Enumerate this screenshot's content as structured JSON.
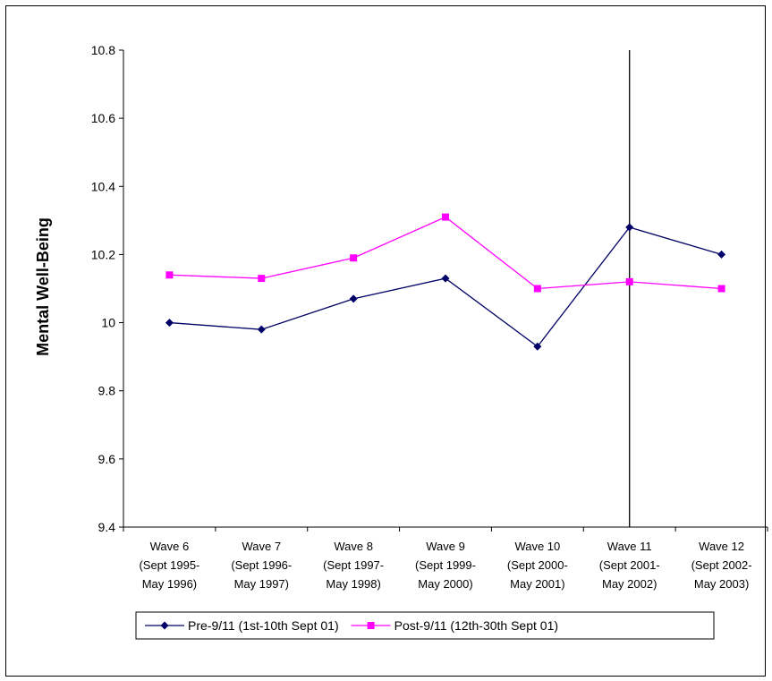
{
  "chart_data": {
    "type": "line",
    "title": "",
    "xlabel": "",
    "ylabel": "Mental Well-Being",
    "ylim": [
      9.4,
      10.8
    ],
    "y_ticks": [
      "9.4",
      "9.6",
      "9.8",
      "10",
      "10.2",
      "10.4",
      "10.6",
      "10.8"
    ],
    "categories": [
      [
        "Wave 6",
        "(Sept 1995-",
        "May 1996)"
      ],
      [
        "Wave 7",
        "(Sept 1996-",
        "May 1997)"
      ],
      [
        "Wave 8",
        "(Sept 1997-",
        "May 1998)"
      ],
      [
        "Wave 9",
        "(Sept 1999-",
        "May 2000)"
      ],
      [
        "Wave 10",
        "(Sept 2000-",
        "May 2001)"
      ],
      [
        "Wave 11",
        "(Sept 2001-",
        "May 2002)"
      ],
      [
        "Wave 12",
        "(Sept 2002-",
        "May 2003)"
      ]
    ],
    "series": [
      {
        "name": "Pre-9/11 (1st-10th Sept 01)",
        "color": "#000066",
        "marker": "diamond",
        "values": [
          10.0,
          9.98,
          10.07,
          10.13,
          9.93,
          10.28,
          10.2
        ]
      },
      {
        "name": "Post-9/11 (12th-30th Sept 01)",
        "color": "#ff00ff",
        "marker": "square",
        "values": [
          10.14,
          10.13,
          10.19,
          10.31,
          10.1,
          10.12,
          10.1
        ]
      }
    ],
    "vertical_marker_category_index": 5,
    "grid": false,
    "legend_position": "bottom"
  }
}
